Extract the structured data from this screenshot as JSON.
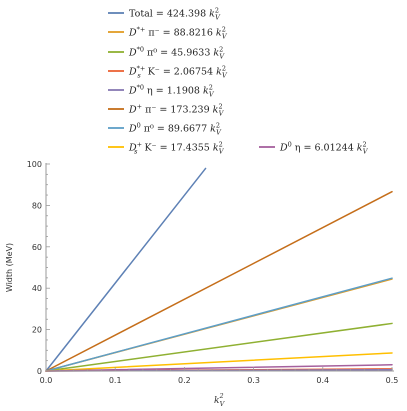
{
  "chart_data": {
    "type": "line",
    "title": "",
    "xlabel_main": "k",
    "xlabel_sub": "V",
    "xlabel_sup": "2",
    "ylabel": "Width (MeV)",
    "xlim": [
      0.0,
      0.5
    ],
    "ylim": [
      0,
      100
    ],
    "xticks": [
      "0.0",
      "0.1",
      "0.2",
      "0.3",
      "0.4",
      "0.5"
    ],
    "yticks": [
      "0",
      "20",
      "40",
      "60",
      "80",
      "100"
    ],
    "grid": false,
    "legend_position": "top",
    "series": [
      {
        "legend_id": "total",
        "color": "#5e81b5",
        "slope": 424.398,
        "x": [
          0.0,
          0.2306
        ],
        "y": [
          0.0,
          97.87
        ],
        "legend": {
          "pre": "Total = 424.398 ",
          "main": "k",
          "sub": "V",
          "sup": "2",
          "particle": null,
          "particle_sub": null,
          "particle_sup": null,
          "rest": ""
        }
      },
      {
        "legend_id": "dstar-plus-pi-minus",
        "color": "#e19c24",
        "slope": 88.8216,
        "x": [
          0.0,
          0.5
        ],
        "y": [
          0.0,
          44.41
        ],
        "legend": {
          "particle": "D",
          "particle_sup": "*+",
          "particle_sub": "",
          "rest": " π⁻ = 88.8216 ",
          "main": "k",
          "sub": "V",
          "sup": "2"
        }
      },
      {
        "legend_id": "dstar0-pi0",
        "color": "#8fb032",
        "slope": 45.9633,
        "x": [
          0.0,
          0.5
        ],
        "y": [
          0.0,
          22.98
        ],
        "legend": {
          "particle": "D",
          "particle_sup": "*0",
          "particle_sub": "",
          "rest": " π⁰ = 45.9633 ",
          "main": "k",
          "sub": "V",
          "sup": "2"
        }
      },
      {
        "legend_id": "dsstar-plus-k-minus",
        "color": "#eb6235",
        "slope": 2.06754,
        "x": [
          0.0,
          0.5
        ],
        "y": [
          0.0,
          1.03
        ],
        "legend": {
          "particle": "D",
          "particle_sup": "*+",
          "particle_sub": "s",
          "rest": " K⁻ = 2.06754 ",
          "main": "k",
          "sub": "V",
          "sup": "2"
        }
      },
      {
        "legend_id": "dstar0-eta",
        "color": "#8778b3",
        "slope": 1.1908,
        "x": [
          0.0,
          0.5
        ],
        "y": [
          0.0,
          0.6
        ],
        "legend": {
          "particle": "D",
          "particle_sup": "*0",
          "particle_sub": "",
          "rest": " η = 1.1908 ",
          "main": "k",
          "sub": "V",
          "sup": "2"
        }
      },
      {
        "legend_id": "dplus-pi-minus",
        "color": "#c56e1a",
        "slope": 173.239,
        "x": [
          0.0,
          0.5
        ],
        "y": [
          0.0,
          86.62
        ],
        "legend": {
          "particle": "D",
          "particle_sup": "+",
          "particle_sub": "",
          "rest": " π⁻ = 173.239 ",
          "main": "k",
          "sub": "V",
          "sup": "2"
        }
      },
      {
        "legend_id": "d0-pi0",
        "color": "#5d9ec7",
        "slope": 89.6677,
        "x": [
          0.0,
          0.5
        ],
        "y": [
          0.0,
          44.83
        ],
        "legend": {
          "particle": "D",
          "particle_sup": "0",
          "particle_sub": "",
          "rest": " π⁰ = 89.6677 ",
          "main": "k",
          "sub": "V",
          "sup": "2"
        }
      },
      {
        "legend_id": "ds-plus-k-minus",
        "color": "#ffbf00",
        "slope": 17.4355,
        "x": [
          0.0,
          0.5
        ],
        "y": [
          0.0,
          8.72
        ],
        "legend": {
          "particle": "D",
          "particle_sup": "+",
          "particle_sub": "s",
          "rest": " K⁻ = 17.4355 ",
          "main": "k",
          "sub": "V",
          "sup": "2"
        }
      },
      {
        "legend_id": "d0-eta",
        "color": "#a5609d",
        "slope": 6.01244,
        "x": [
          0.0,
          0.5
        ],
        "y": [
          0.0,
          3.01
        ],
        "legend": {
          "particle": "D",
          "particle_sup": "0",
          "particle_sub": "",
          "rest": " η = 6.01244 ",
          "main": "k",
          "sub": "V",
          "sup": "2"
        }
      }
    ]
  }
}
